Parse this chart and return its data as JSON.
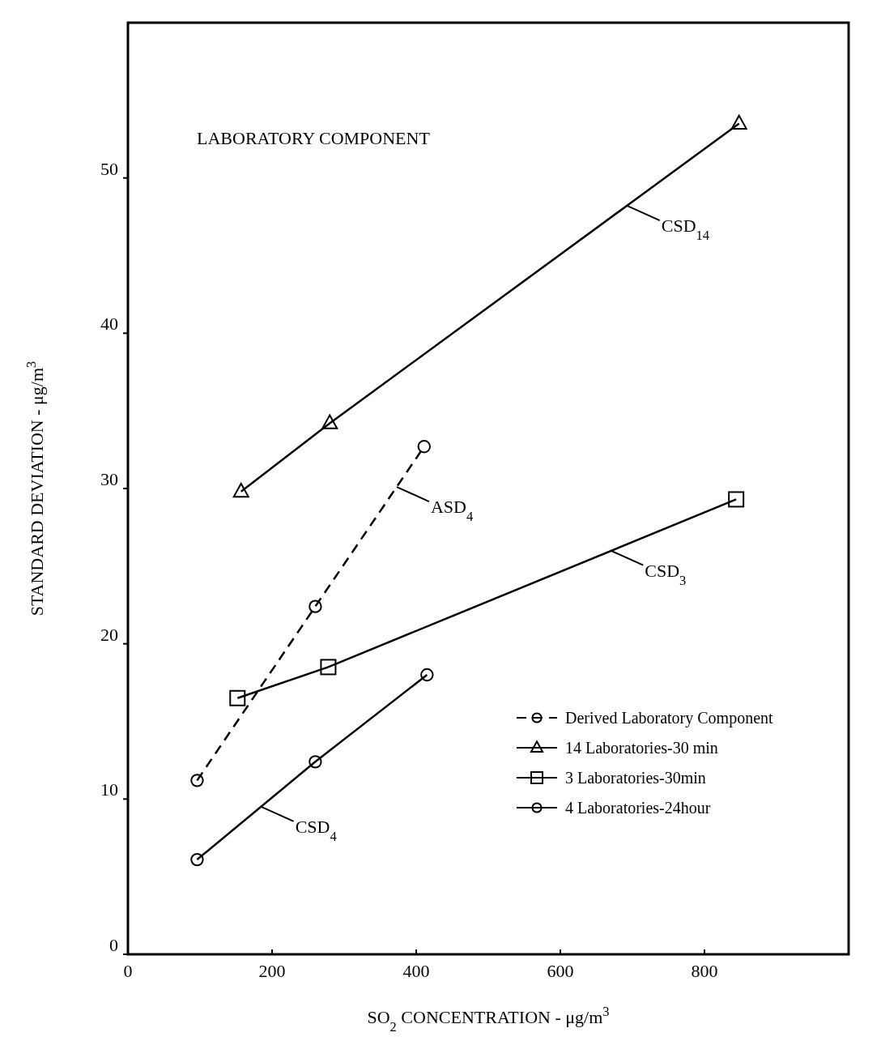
{
  "chart_data": {
    "type": "line",
    "title": "LABORATORY COMPONENT",
    "xlabel": "SO$_{2}$ CONCENTRATION - μg/m$^{3}$",
    "ylabel": "STANDARD DEVIATION - μg/m$^{3}$",
    "xlim": [
      0,
      1000
    ],
    "ylim": [
      0,
      60
    ],
    "xticks": [
      0,
      200,
      400,
      600,
      800
    ],
    "yticks": [
      0,
      10,
      20,
      30,
      40,
      50
    ],
    "grid": false,
    "legend": "bottom right",
    "series": [
      {
        "name": "Derived Laboratory Component",
        "color": "#000000",
        "marker": "circle",
        "line_style": "dashed",
        "x": [
          96,
          260,
          411
        ],
        "values": [
          11.2,
          22.4,
          32.7
        ]
      },
      {
        "name": "14 Laboratories-30 min",
        "color": "#000000",
        "marker": "triangle",
        "line_style": "solid",
        "x": [
          157,
          280,
          848
        ],
        "values": [
          29.8,
          34.2,
          53.5
        ]
      },
      {
        "name": "3 Laboratories-30min",
        "color": "#000000",
        "marker": "square",
        "line_style": "solid",
        "x": [
          152,
          278,
          844
        ],
        "values": [
          16.5,
          18.5,
          29.3
        ]
      },
      {
        "name": "4 Laboratories-24hour",
        "color": "#000000",
        "marker": "circle",
        "line_style": "solid",
        "x": [
          96,
          260,
          415
        ],
        "values": [
          6.1,
          12.4,
          18.0
        ]
      }
    ],
    "annotations": [
      {
        "text": "CSD$_{14}$",
        "x": 693,
        "y": 48.2
      },
      {
        "text": "ASD$_{4}$",
        "x": 373,
        "y": 30.1
      },
      {
        "text": "CSD$_{3}$",
        "x": 670,
        "y": 26.0
      },
      {
        "text": "CSD$_{4}$",
        "x": 185,
        "y": 9.5
      }
    ]
  }
}
